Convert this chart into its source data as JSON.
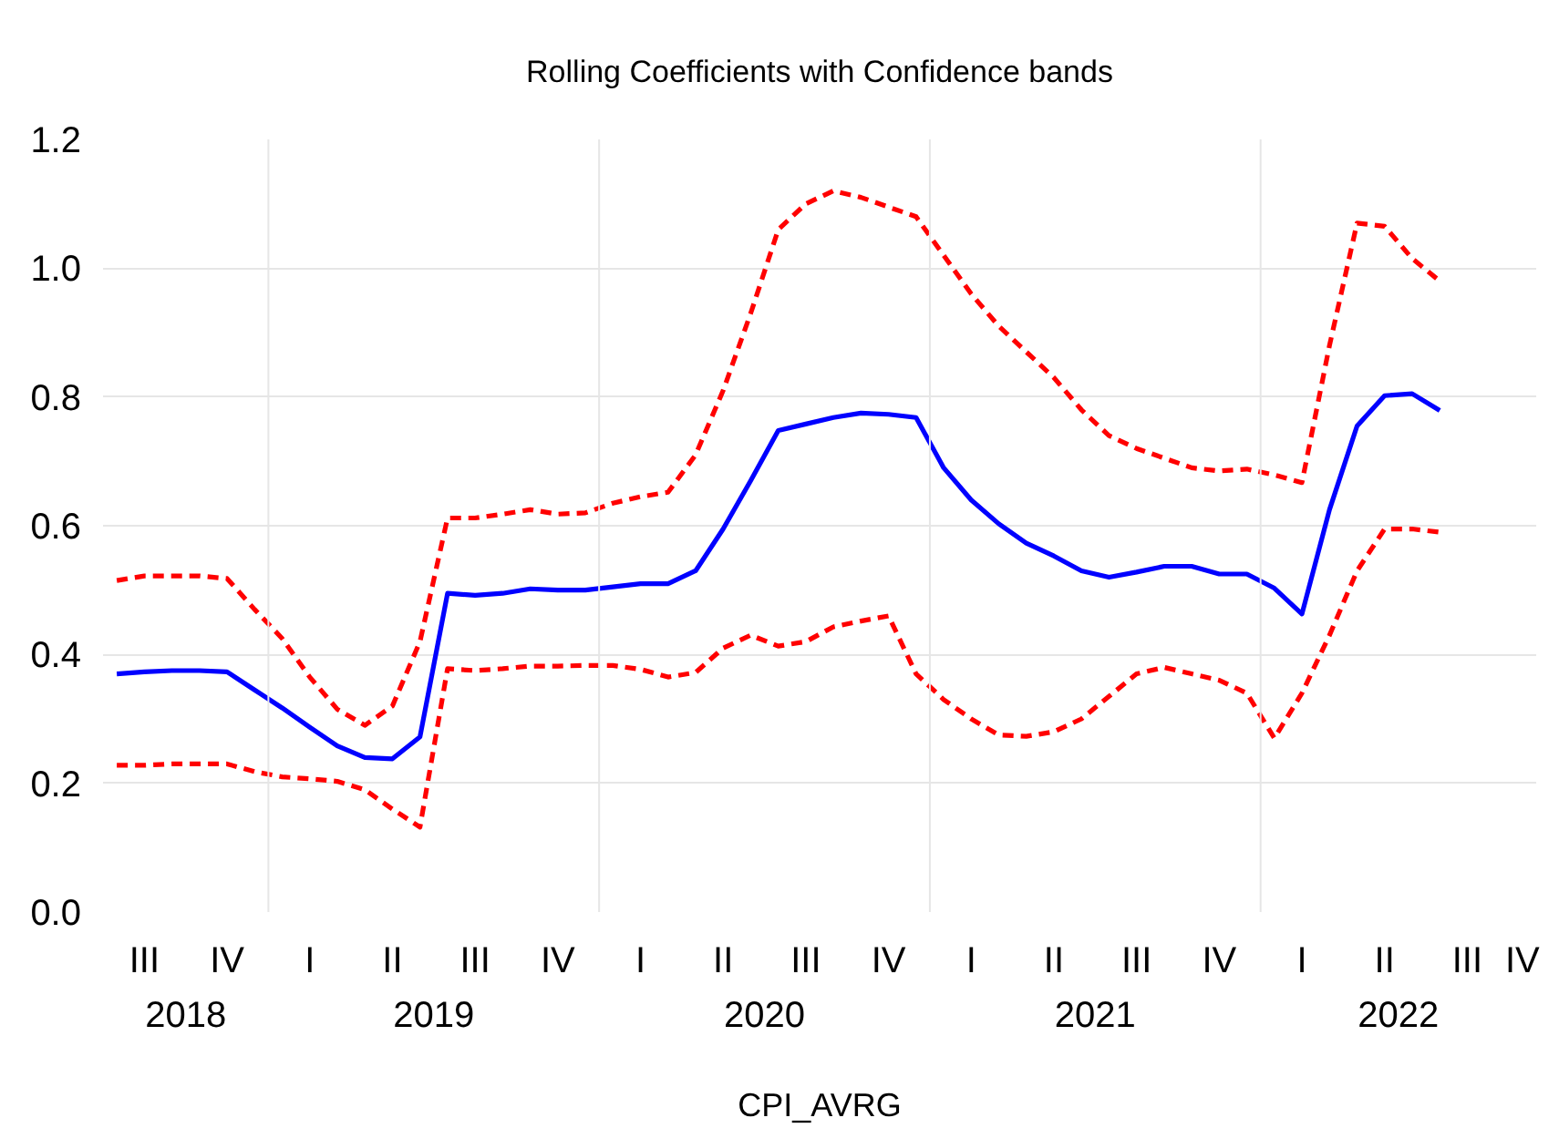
{
  "chart_data": {
    "type": "line",
    "title": "Rolling Coefficients with Confidence bands",
    "xlabel": "CPI_AVRG",
    "categories": [
      null,
      "III",
      null,
      null,
      "IV",
      null,
      null,
      "I",
      null,
      null,
      "II",
      null,
      null,
      "III",
      null,
      null,
      "IV",
      null,
      null,
      "I",
      null,
      null,
      "II",
      null,
      null,
      "III",
      null,
      null,
      "IV",
      null,
      null,
      "I",
      null,
      null,
      "II",
      null,
      null,
      "III",
      null,
      null,
      "IV",
      null,
      null,
      "I",
      null,
      null,
      "II",
      null,
      null,
      "III",
      null,
      "IV"
    ],
    "series": [
      {
        "color": "#ff0000",
        "line_style": "dashed",
        "values": [
          0.515,
          0.522,
          0.522,
          0.522,
          0.518,
          0.47,
          0.425,
          0.365,
          0.315,
          0.29,
          0.32,
          0.42,
          0.612,
          0.612,
          0.618,
          0.625,
          0.618,
          0.62,
          0.635,
          0.645,
          0.652,
          0.71,
          0.81,
          0.93,
          1.06,
          1.1,
          1.12,
          1.11,
          1.095,
          1.08,
          1.02,
          0.96,
          0.91,
          0.87,
          0.83,
          0.78,
          0.74,
          0.72,
          0.705,
          0.69,
          0.685,
          0.688,
          0.679,
          0.667,
          0.88,
          1.07,
          1.065,
          1.015,
          0.98,
          null,
          null,
          null
        ]
      },
      {
        "color": "#ff0000",
        "line_style": "dashed",
        "values": [
          0.228,
          0.228,
          0.23,
          0.23,
          0.23,
          0.218,
          0.21,
          0.207,
          0.203,
          0.19,
          0.16,
          0.132,
          0.378,
          0.375,
          0.378,
          0.382,
          0.382,
          0.383,
          0.383,
          0.377,
          0.365,
          0.372,
          0.41,
          0.43,
          0.413,
          0.42,
          0.443,
          0.452,
          0.46,
          0.37,
          0.33,
          0.3,
          0.275,
          0.273,
          0.28,
          0.3,
          0.335,
          0.37,
          0.38,
          0.37,
          0.36,
          0.34,
          0.27,
          0.34,
          0.43,
          0.53,
          0.595,
          0.595,
          0.59,
          null,
          null,
          null
        ]
      },
      {
        "color": "#0000ff",
        "line_style": "solid",
        "values": [
          0.37,
          0.373,
          0.375,
          0.375,
          0.373,
          0.345,
          0.317,
          0.287,
          0.258,
          0.24,
          0.238,
          0.272,
          0.495,
          0.492,
          0.495,
          0.502,
          0.5,
          0.5,
          0.505,
          0.51,
          0.51,
          0.53,
          0.595,
          0.67,
          0.748,
          0.758,
          0.768,
          0.775,
          0.773,
          0.768,
          0.69,
          0.64,
          0.603,
          0.573,
          0.553,
          0.53,
          0.52,
          0.528,
          0.537,
          0.537,
          0.525,
          0.525,
          0.503,
          0.463,
          0.625,
          0.755,
          0.802,
          0.805,
          0.779,
          null,
          null,
          null
        ]
      }
    ],
    "annotations": [
      "2018",
      "2019",
      "2020",
      "2021",
      "2022"
    ],
    "ylim": [
      0,
      1.2
    ],
    "yticks": [
      {
        "value": 0,
        "label": "0.0"
      },
      {
        "value": 0.2,
        "label": "0.2"
      },
      {
        "value": 0.4,
        "label": "0.4"
      },
      {
        "value": 0.6,
        "label": "0.6"
      },
      {
        "value": 0.8,
        "label": "0.8"
      },
      {
        "value": 1.0,
        "label": "1.0"
      },
      {
        "value": 1.2,
        "label": "1.2"
      }
    ],
    "grid": "y"
  }
}
